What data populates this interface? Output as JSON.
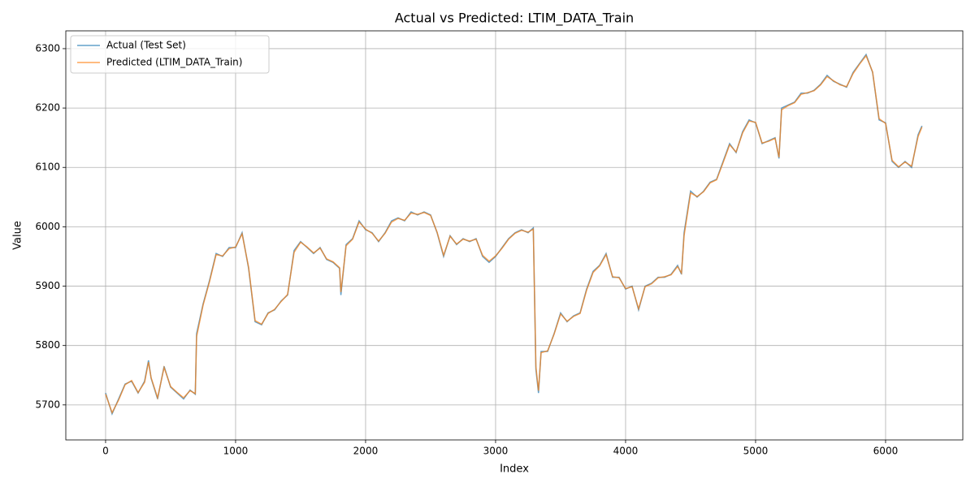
{
  "chart_data": {
    "type": "line",
    "title": "Actual vs Predicted: LTIM_DATA_Train",
    "x_label": "Index",
    "y_label": "Value",
    "x": [
      0,
      50,
      100,
      150,
      200,
      250,
      300,
      330,
      350,
      400,
      450,
      500,
      550,
      600,
      650,
      690,
      700,
      750,
      800,
      850,
      900,
      950,
      1000,
      1050,
      1100,
      1150,
      1200,
      1250,
      1300,
      1350,
      1400,
      1450,
      1500,
      1550,
      1600,
      1650,
      1700,
      1750,
      1800,
      1810,
      1850,
      1900,
      1950,
      2000,
      2050,
      2100,
      2150,
      2200,
      2250,
      2300,
      2350,
      2400,
      2450,
      2500,
      2550,
      2600,
      2650,
      2700,
      2750,
      2800,
      2850,
      2900,
      2950,
      3000,
      3050,
      3100,
      3150,
      3200,
      3250,
      3290,
      3310,
      3330,
      3350,
      3400,
      3450,
      3500,
      3550,
      3600,
      3650,
      3700,
      3750,
      3800,
      3850,
      3900,
      3950,
      4000,
      4050,
      4100,
      4150,
      4200,
      4250,
      4300,
      4350,
      4400,
      4430,
      4450,
      4500,
      4550,
      4600,
      4650,
      4700,
      4750,
      4800,
      4850,
      4900,
      4950,
      5000,
      5050,
      5100,
      5150,
      5180,
      5200,
      5250,
      5300,
      5350,
      5400,
      5450,
      5500,
      5550,
      5600,
      5650,
      5700,
      5750,
      5800,
      5850,
      5900,
      5950,
      6000,
      6050,
      6100,
      6150,
      6200,
      6250,
      6280
    ],
    "series": [
      {
        "name": "Actual (Test Set)",
        "color": "#1f77b4",
        "values": [
          5720,
          5685,
          5710,
          5735,
          5740,
          5720,
          5740,
          5775,
          5745,
          5710,
          5765,
          5730,
          5720,
          5710,
          5725,
          5718,
          5820,
          5870,
          5910,
          5955,
          5950,
          5965,
          5965,
          5990,
          5930,
          5840,
          5835,
          5855,
          5860,
          5875,
          5885,
          5960,
          5975,
          5965,
          5955,
          5965,
          5945,
          5940,
          5930,
          5885,
          5970,
          5980,
          6010,
          5995,
          5990,
          5975,
          5990,
          6010,
          6015,
          6010,
          6025,
          6020,
          6025,
          6020,
          5990,
          5950,
          5985,
          5970,
          5980,
          5975,
          5980,
          5950,
          5940,
          5950,
          5965,
          5980,
          5990,
          5995,
          5990,
          5998,
          5760,
          5720,
          5790,
          5790,
          5820,
          5855,
          5840,
          5850,
          5855,
          5895,
          5925,
          5935,
          5955,
          5915,
          5915,
          5895,
          5900,
          5860,
          5900,
          5905,
          5915,
          5915,
          5920,
          5935,
          5920,
          5990,
          6060,
          6050,
          6060,
          6075,
          6080,
          6110,
          6140,
          6125,
          6160,
          6180,
          6175,
          6140,
          6145,
          6150,
          6115,
          6200,
          6205,
          6210,
          6225,
          6225,
          6230,
          6240,
          6255,
          6245,
          6240,
          6235,
          6260,
          6275,
          6290,
          6260,
          6180,
          6175,
          6110,
          6100,
          6110,
          6100,
          6155,
          6170
        ]
      },
      {
        "name": "Predicted (LTIM_DATA_Train)",
        "color": "#ff7f0e",
        "values": [
          5718,
          5687,
          5708,
          5734,
          5741,
          5721,
          5738,
          5772,
          5746,
          5712,
          5763,
          5731,
          5721,
          5712,
          5724,
          5719,
          5815,
          5868,
          5908,
          5953,
          5951,
          5963,
          5966,
          5988,
          5932,
          5842,
          5836,
          5854,
          5861,
          5874,
          5886,
          5957,
          5974,
          5966,
          5956,
          5964,
          5946,
          5941,
          5931,
          5890,
          5968,
          5979,
          6008,
          5996,
          5989,
          5976,
          5989,
          6008,
          6014,
          6011,
          6023,
          6021,
          6024,
          6019,
          5991,
          5952,
          5984,
          5971,
          5979,
          5976,
          5979,
          5952,
          5942,
          5951,
          5964,
          5979,
          5989,
          5994,
          5991,
          5996,
          5765,
          5724,
          5788,
          5791,
          5819,
          5853,
          5841,
          5849,
          5854,
          5893,
          5923,
          5934,
          5953,
          5916,
          5914,
          5896,
          5899,
          5862,
          5899,
          5904,
          5914,
          5916,
          5919,
          5933,
          5922,
          5985,
          6057,
          6051,
          6059,
          6074,
          6079,
          6108,
          6138,
          6126,
          6158,
          6178,
          6176,
          6141,
          6144,
          6149,
          6117,
          6197,
          6204,
          6209,
          6223,
          6226,
          6229,
          6239,
          6253,
          6246,
          6239,
          6236,
          6258,
          6274,
          6288,
          6261,
          6182,
          6174,
          6112,
          6101,
          6109,
          6102,
          6152,
          6168
        ]
      }
    ],
    "xlim": [
      -306,
      6594
    ],
    "ylim": [
      5641,
      6330
    ],
    "xticks": [
      0,
      1000,
      2000,
      3000,
      4000,
      5000,
      6000
    ],
    "yticks": [
      5700,
      5800,
      5900,
      6000,
      6100,
      6200,
      6300
    ],
    "grid": true,
    "legend": "upper left"
  }
}
